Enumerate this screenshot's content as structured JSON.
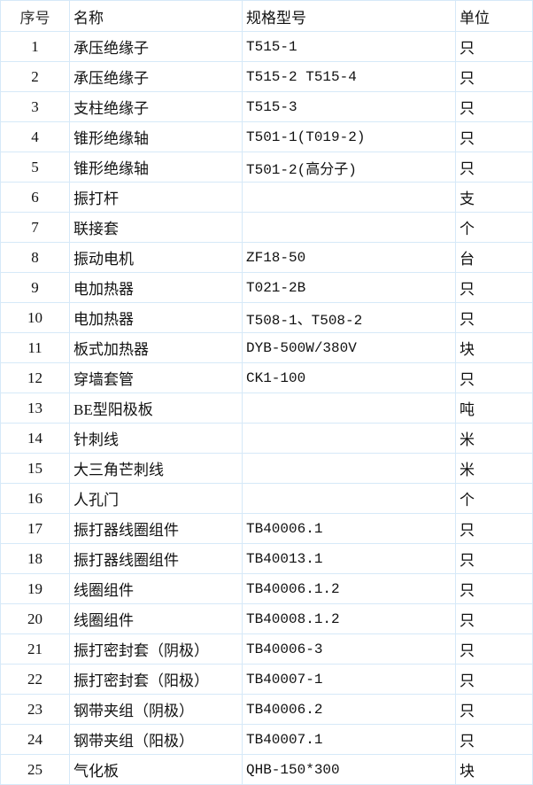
{
  "headers": [
    "序号",
    "名称",
    "规格型号",
    "单位"
  ],
  "rows": [
    [
      "1",
      "承压绝缘子",
      "T515-1",
      "只"
    ],
    [
      "2",
      "承压绝缘子",
      "T515-2 T515-4",
      "只"
    ],
    [
      "3",
      "支柱绝缘子",
      "T515-3",
      "只"
    ],
    [
      "4",
      "锥形绝缘轴",
      "T501-1(T019-2)",
      "只"
    ],
    [
      "5",
      "锥形绝缘轴",
      "T501-2(高分子)",
      "只"
    ],
    [
      "6",
      "振打杆",
      "",
      "支"
    ],
    [
      "7",
      "联接套",
      "",
      "个"
    ],
    [
      "8",
      "振动电机",
      "ZF18-50",
      "台"
    ],
    [
      "9",
      "电加热器",
      "T021-2B",
      "只"
    ],
    [
      "10",
      "电加热器",
      "T508-1、T508-2",
      "只"
    ],
    [
      "11",
      "板式加热器",
      "DYB-500W/380V",
      "块"
    ],
    [
      "12",
      "穿墙套管",
      "CK1-100",
      "只"
    ],
    [
      "13",
      "BE型阳极板",
      "",
      "吨"
    ],
    [
      "14",
      "针刺线",
      "",
      "米"
    ],
    [
      "15",
      "大三角芒刺线",
      "",
      "米"
    ],
    [
      "16",
      "人孔门",
      "",
      "个"
    ],
    [
      "17",
      "振打器线圈组件",
      "TB40006.1",
      "只"
    ],
    [
      "18",
      "振打器线圈组件",
      "TB40013.1",
      "只"
    ],
    [
      "19",
      "线圈组件",
      "TB40006.1.2",
      "只"
    ],
    [
      "20",
      "线圈组件",
      "TB40008.1.2",
      "只"
    ],
    [
      "21",
      "振打密封套（阴极）",
      "TB40006-3",
      "只"
    ],
    [
      "22",
      "振打密封套（阳极）",
      "TB40007-1",
      "只"
    ],
    [
      "23",
      "钢带夹组（阴极）",
      "TB40006.2",
      "只"
    ],
    [
      "24",
      "钢带夹组（阳极）",
      "TB40007.1",
      "只"
    ],
    [
      "25",
      "气化板",
      "QHB-150*300",
      "块"
    ]
  ],
  "colors": {
    "grid": "#d6e9f8"
  }
}
